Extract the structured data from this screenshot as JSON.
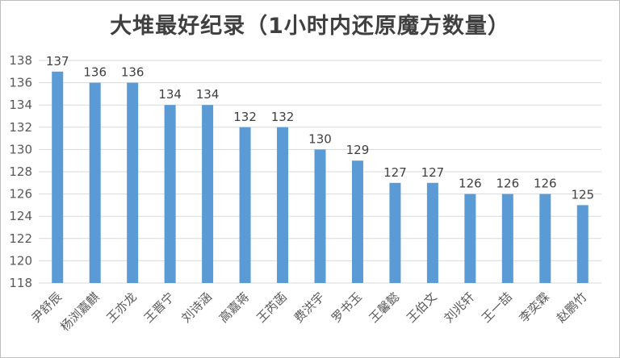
{
  "chart_data": {
    "type": "bar",
    "title": "大堆最好纪录（1小时内还原魔方数量）",
    "categories": [
      "尹舒辰",
      "杨浏嘉麒",
      "王亦龙",
      "王晋宁",
      "刘诗涵",
      "高嘉蒋",
      "王芮菡",
      "费洪宇",
      "罗书玉",
      "王馨懿",
      "王伯文",
      "刘兆轩",
      "王一喆",
      "李奕霖",
      "赵鹏竹"
    ],
    "values": [
      137,
      136,
      136,
      134,
      134,
      132,
      132,
      130,
      129,
      127,
      127,
      126,
      126,
      126,
      125
    ],
    "ylim": [
      118,
      138
    ],
    "yticks": [
      118,
      120,
      122,
      124,
      126,
      128,
      130,
      132,
      134,
      136,
      138
    ],
    "grid": true,
    "legend": "none",
    "bar_color": "#5b9bd5",
    "grid_color": "#d9d9d9"
  }
}
